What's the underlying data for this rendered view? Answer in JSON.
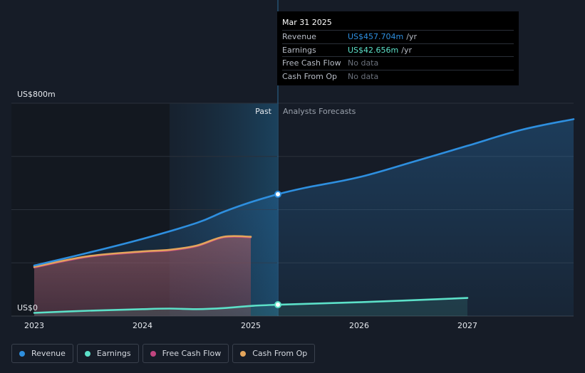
{
  "chart_data": {
    "type": "line",
    "title": "",
    "xlabel": "",
    "ylabel": "",
    "y_axis_labels": {
      "top": "US$800m",
      "bottom": "US$0"
    },
    "ylim": [
      0,
      800
    ],
    "x_ticks": [
      "2023",
      "2024",
      "2025",
      "2026",
      "2027"
    ],
    "past_label": "Past",
    "forecast_label": "Analysts Forecasts",
    "series": [
      {
        "name": "Revenue",
        "color": "#2e8fdf",
        "points": [
          [
            2023.0,
            190
          ],
          [
            2023.5,
            238
          ],
          [
            2024.0,
            290
          ],
          [
            2024.5,
            350
          ],
          [
            2024.75,
            392
          ],
          [
            2025.0,
            428
          ],
          [
            2025.25,
            458
          ],
          [
            2025.5,
            482
          ],
          [
            2026.0,
            522
          ],
          [
            2026.5,
            580
          ],
          [
            2027.0,
            640
          ],
          [
            2027.5,
            700
          ],
          [
            2028.0,
            740
          ]
        ]
      },
      {
        "name": "Earnings",
        "color": "#5ce0c8",
        "points": [
          [
            2023.0,
            12
          ],
          [
            2023.5,
            20
          ],
          [
            2024.0,
            26
          ],
          [
            2024.25,
            28
          ],
          [
            2024.5,
            26
          ],
          [
            2024.75,
            30
          ],
          [
            2025.0,
            38
          ],
          [
            2025.25,
            42.656
          ],
          [
            2026.0,
            52
          ],
          [
            2027.0,
            68
          ]
        ]
      },
      {
        "name": "Free Cash Flow",
        "color": "#c0457f",
        "points": [
          [
            2023.0,
            182
          ],
          [
            2023.5,
            222
          ],
          [
            2024.0,
            240
          ],
          [
            2024.25,
            246
          ],
          [
            2024.5,
            262
          ],
          [
            2024.75,
            295
          ],
          [
            2025.0,
            295
          ]
        ]
      },
      {
        "name": "Cash From Op",
        "color": "#e3a55c",
        "points": [
          [
            2023.0,
            185
          ],
          [
            2023.5,
            225
          ],
          [
            2024.0,
            243
          ],
          [
            2024.25,
            249
          ],
          [
            2024.5,
            265
          ],
          [
            2024.75,
            298
          ],
          [
            2025.0,
            298
          ]
        ]
      }
    ],
    "highlight": {
      "x": 2025.25,
      "revenue": 457.704,
      "earnings": 42.656
    },
    "grid": true
  },
  "tooltip": {
    "date": "Mar 31 2025",
    "rows": [
      {
        "label": "Revenue",
        "value": "US$457.704m",
        "unit": "/yr",
        "color": "#2e8fdf"
      },
      {
        "label": "Earnings",
        "value": "US$42.656m",
        "unit": "/yr",
        "color": "#5ce0c8"
      },
      {
        "label": "Free Cash Flow",
        "value": "No data",
        "unit": "",
        "color": "#6b717c"
      },
      {
        "label": "Cash From Op",
        "value": "No data",
        "unit": "",
        "color": "#6b717c"
      }
    ]
  },
  "legend": [
    {
      "label": "Revenue",
      "color": "#2e8fdf"
    },
    {
      "label": "Earnings",
      "color": "#5ce0c8"
    },
    {
      "label": "Free Cash Flow",
      "color": "#c0457f"
    },
    {
      "label": "Cash From Op",
      "color": "#e3a55c"
    }
  ]
}
